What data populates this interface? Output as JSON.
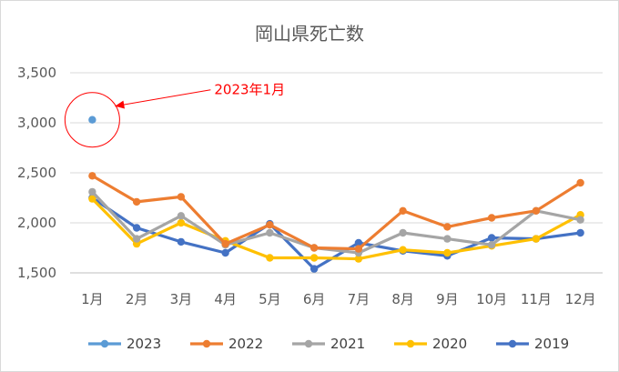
{
  "chart_data": {
    "type": "line",
    "title": "岡山県死亡数",
    "categories": [
      "1月",
      "2月",
      "3月",
      "4月",
      "5月",
      "6月",
      "7月",
      "8月",
      "9月",
      "10月",
      "11月",
      "12月"
    ],
    "ylim": [
      1500,
      3500
    ],
    "yticks": [
      1500,
      2000,
      2500,
      3000,
      3500
    ],
    "ytick_labels": [
      "1,500",
      "2,000",
      "2,500",
      "3,000",
      "3,500"
    ],
    "grid": true,
    "legend_position": "bottom",
    "series": [
      {
        "name": "2023",
        "color": "#5b9bd5",
        "values": [
          3030,
          null,
          null,
          null,
          null,
          null,
          null,
          null,
          null,
          null,
          null,
          null
        ]
      },
      {
        "name": "2022",
        "color": "#ed7d31",
        "values": [
          2470,
          2210,
          2260,
          1790,
          1980,
          1750,
          1740,
          2120,
          1960,
          2050,
          2120,
          2400
        ]
      },
      {
        "name": "2021",
        "color": "#a5a5a5",
        "values": [
          2310,
          1840,
          2070,
          1780,
          1900,
          1750,
          1700,
          1900,
          1840,
          1780,
          2120,
          2030
        ]
      },
      {
        "name": "2020",
        "color": "#ffc000",
        "values": [
          2240,
          1790,
          2000,
          1820,
          1650,
          1650,
          1640,
          1730,
          1700,
          1770,
          1840,
          2080
        ]
      },
      {
        "name": "2019",
        "color": "#4472c4",
        "values": [
          2250,
          1950,
          1810,
          1700,
          1990,
          1540,
          1800,
          1720,
          1670,
          1850,
          1840,
          1900
        ]
      }
    ],
    "annotations": [
      {
        "text": "2023年1月",
        "color": "#ff0000",
        "target_series": "2023",
        "target_category": "1月"
      }
    ]
  }
}
